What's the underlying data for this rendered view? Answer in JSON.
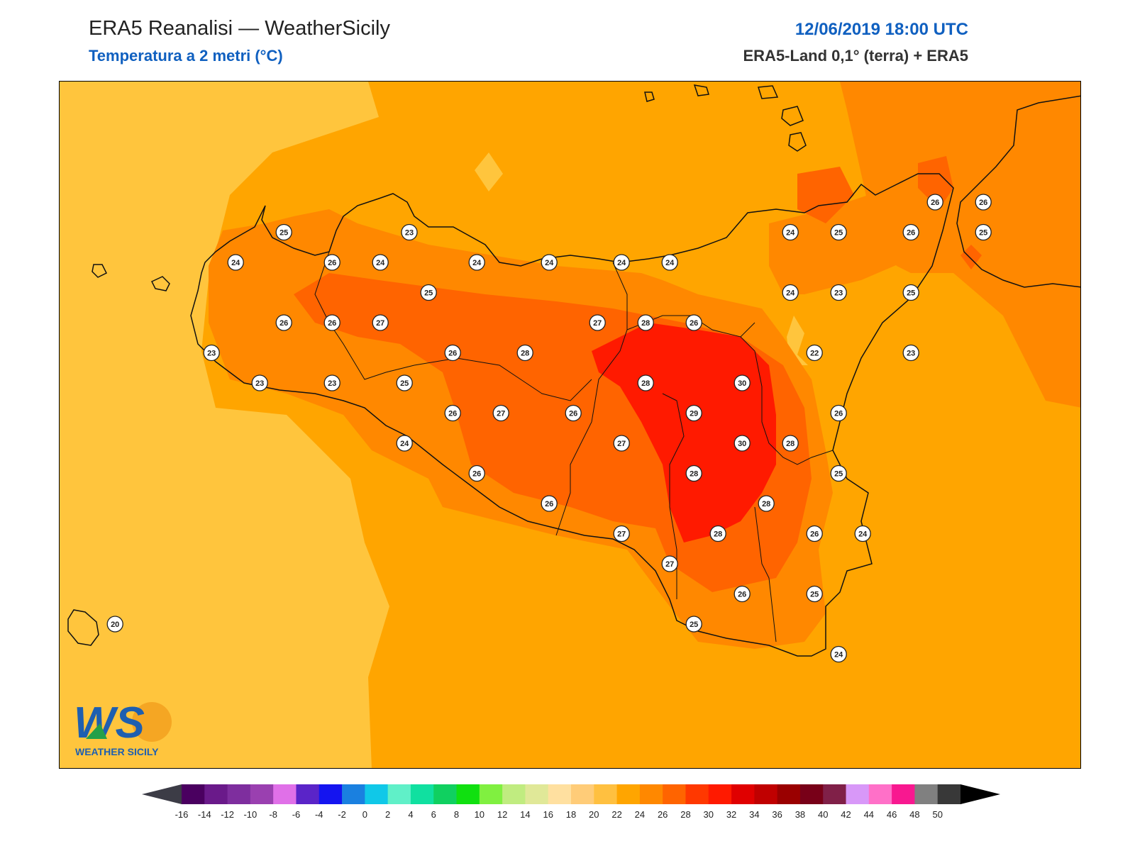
{
  "header": {
    "title": "ERA5 Reanalisi — WeatherSicily",
    "subtitle": "Temperatura a 2 metri (°C)",
    "datetime": "12/06/2019 18:00 UTC",
    "source": "ERA5-Land 0,1° (terra) + ERA5"
  },
  "logo": {
    "mark": "WS",
    "text": "WEATHER SICILY"
  },
  "colorbar": {
    "ticks": [
      "-16",
      "-14",
      "-12",
      "-10",
      "-8",
      "-6",
      "-4",
      "-2",
      "0",
      "2",
      "4",
      "6",
      "8",
      "10",
      "12",
      "14",
      "16",
      "18",
      "20",
      "22",
      "24",
      "26",
      "28",
      "30",
      "32",
      "34",
      "36",
      "38",
      "40",
      "42",
      "44",
      "46",
      "48",
      "50"
    ],
    "colors": [
      "#4a0060",
      "#6a1a8a",
      "#7e2e9e",
      "#9a40b0",
      "#e070e8",
      "#5a24c8",
      "#1414f0",
      "#1a80e0",
      "#10c8e8",
      "#60f0c8",
      "#10e0a0",
      "#10d060",
      "#10e010",
      "#80f040",
      "#c0ec80",
      "#e0e898",
      "#ffe0a0",
      "#ffcc78",
      "#ffc040",
      "#ffa500",
      "#ff8800",
      "#ff6400",
      "#ff3800",
      "#ff1a00",
      "#e00000",
      "#c00000",
      "#9a0000",
      "#780018",
      "#802048",
      "#d898f8",
      "#ff70c8",
      "#f81890",
      "#808080",
      "#383838"
    ]
  },
  "stations": [
    {
      "value": "25",
      "lon": 12.63,
      "lat": 38.05
    },
    {
      "value": "23",
      "lon": 13.15,
      "lat": 38.05
    },
    {
      "value": "24",
      "lon": 12.43,
      "lat": 37.95
    },
    {
      "value": "26",
      "lon": 12.83,
      "lat": 37.95
    },
    {
      "value": "24",
      "lon": 13.03,
      "lat": 37.95
    },
    {
      "value": "24",
      "lon": 13.43,
      "lat": 37.95
    },
    {
      "value": "24",
      "lon": 13.73,
      "lat": 37.95
    },
    {
      "value": "24",
      "lon": 14.03,
      "lat": 37.95
    },
    {
      "value": "24",
      "lon": 14.23,
      "lat": 37.95
    },
    {
      "value": "24",
      "lon": 14.73,
      "lat": 38.05
    },
    {
      "value": "25",
      "lon": 14.93,
      "lat": 38.05
    },
    {
      "value": "26",
      "lon": 15.23,
      "lat": 38.05
    },
    {
      "value": "25",
      "lon": 15.53,
      "lat": 38.05
    },
    {
      "value": "26",
      "lon": 15.33,
      "lat": 38.15
    },
    {
      "value": "26",
      "lon": 15.53,
      "lat": 38.15
    },
    {
      "value": "25",
      "lon": 13.23,
      "lat": 37.85
    },
    {
      "value": "24",
      "lon": 14.73,
      "lat": 37.85
    },
    {
      "value": "23",
      "lon": 14.93,
      "lat": 37.85
    },
    {
      "value": "25",
      "lon": 15.23,
      "lat": 37.85
    },
    {
      "value": "26",
      "lon": 12.63,
      "lat": 37.75
    },
    {
      "value": "26",
      "lon": 12.83,
      "lat": 37.75
    },
    {
      "value": "27",
      "lon": 13.03,
      "lat": 37.75
    },
    {
      "value": "27",
      "lon": 13.93,
      "lat": 37.75
    },
    {
      "value": "28",
      "lon": 14.13,
      "lat": 37.75
    },
    {
      "value": "26",
      "lon": 14.33,
      "lat": 37.75
    },
    {
      "value": "23",
      "lon": 12.33,
      "lat": 37.65
    },
    {
      "value": "26",
      "lon": 13.33,
      "lat": 37.65
    },
    {
      "value": "28",
      "lon": 13.63,
      "lat": 37.65
    },
    {
      "value": "22",
      "lon": 14.83,
      "lat": 37.65
    },
    {
      "value": "23",
      "lon": 15.23,
      "lat": 37.65
    },
    {
      "value": "23",
      "lon": 12.53,
      "lat": 37.55
    },
    {
      "value": "23",
      "lon": 12.83,
      "lat": 37.55
    },
    {
      "value": "25",
      "lon": 13.13,
      "lat": 37.55
    },
    {
      "value": "28",
      "lon": 14.13,
      "lat": 37.55
    },
    {
      "value": "30",
      "lon": 14.53,
      "lat": 37.55
    },
    {
      "value": "26",
      "lon": 13.33,
      "lat": 37.45
    },
    {
      "value": "27",
      "lon": 13.53,
      "lat": 37.45
    },
    {
      "value": "26",
      "lon": 13.83,
      "lat": 37.45
    },
    {
      "value": "29",
      "lon": 14.33,
      "lat": 37.45
    },
    {
      "value": "26",
      "lon": 14.93,
      "lat": 37.45
    },
    {
      "value": "24",
      "lon": 13.13,
      "lat": 37.35
    },
    {
      "value": "27",
      "lon": 14.03,
      "lat": 37.35
    },
    {
      "value": "30",
      "lon": 14.53,
      "lat": 37.35
    },
    {
      "value": "28",
      "lon": 14.73,
      "lat": 37.35
    },
    {
      "value": "26",
      "lon": 13.43,
      "lat": 37.25
    },
    {
      "value": "28",
      "lon": 14.33,
      "lat": 37.25
    },
    {
      "value": "25",
      "lon": 14.93,
      "lat": 37.25
    },
    {
      "value": "26",
      "lon": 13.73,
      "lat": 37.15
    },
    {
      "value": "28",
      "lon": 14.63,
      "lat": 37.15
    },
    {
      "value": "27",
      "lon": 14.03,
      "lat": 37.05
    },
    {
      "value": "28",
      "lon": 14.43,
      "lat": 37.05
    },
    {
      "value": "26",
      "lon": 14.83,
      "lat": 37.05
    },
    {
      "value": "24",
      "lon": 15.03,
      "lat": 37.05
    },
    {
      "value": "27",
      "lon": 14.23,
      "lat": 36.95
    },
    {
      "value": "26",
      "lon": 14.53,
      "lat": 36.85
    },
    {
      "value": "25",
      "lon": 14.83,
      "lat": 36.85
    },
    {
      "value": "25",
      "lon": 14.33,
      "lat": 36.75
    },
    {
      "value": "24",
      "lon": 14.93,
      "lat": 36.65
    },
    {
      "value": "20",
      "lon": 11.93,
      "lat": 36.75
    }
  ]
}
